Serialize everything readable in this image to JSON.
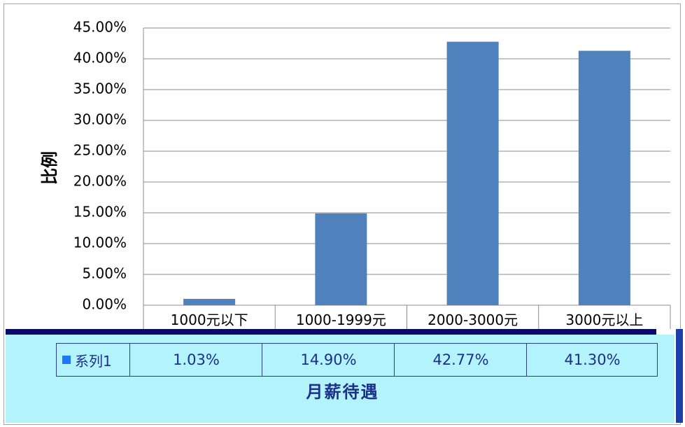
{
  "chart_data": {
    "type": "bar",
    "categories": [
      "1000元以下",
      "1000-1999元",
      "2000-3000元",
      "3000元以上"
    ],
    "series": [
      {
        "name": "系列1",
        "values": [
          1.03,
          14.9,
          42.77,
          41.3
        ]
      }
    ],
    "value_labels": [
      "1.03%",
      "14.90%",
      "42.77%",
      "41.30%"
    ],
    "ylabel": "比例",
    "xlabel": "月薪待遇",
    "ylim": [
      0,
      45
    ],
    "yticks": [
      "0.00%",
      "5.00%",
      "10.00%",
      "15.00%",
      "20.00%",
      "25.00%",
      "30.00%",
      "35.00%",
      "40.00%",
      "45.00%"
    ],
    "grid": true,
    "legend_position": "data-table",
    "bar_color": "#4f81bd"
  }
}
